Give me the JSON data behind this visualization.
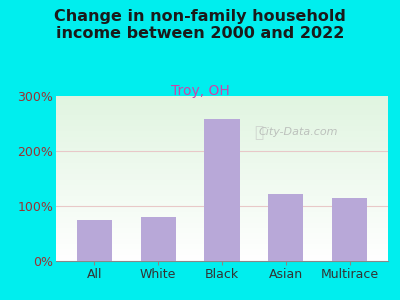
{
  "title": "Change in non-family household\nincome between 2000 and 2022",
  "subtitle": "Troy, OH",
  "categories": [
    "All",
    "White",
    "Black",
    "Asian",
    "Multirace"
  ],
  "values": [
    75,
    80,
    258,
    122,
    115
  ],
  "bar_color": "#b8a8d8",
  "outer_bg": "#00eeee",
  "title_color": "#1a1a1a",
  "subtitle_color": "#cc44aa",
  "ylabel_color": "#993333",
  "grid_color": "#e8c8c8",
  "ylim": [
    0,
    300
  ],
  "yticks": [
    0,
    100,
    200,
    300
  ],
  "ytick_labels": [
    "0%",
    "100%",
    "200%",
    "300%"
  ],
  "watermark": "City-Data.com",
  "title_fontsize": 11.5,
  "subtitle_fontsize": 10,
  "tick_fontsize": 9
}
